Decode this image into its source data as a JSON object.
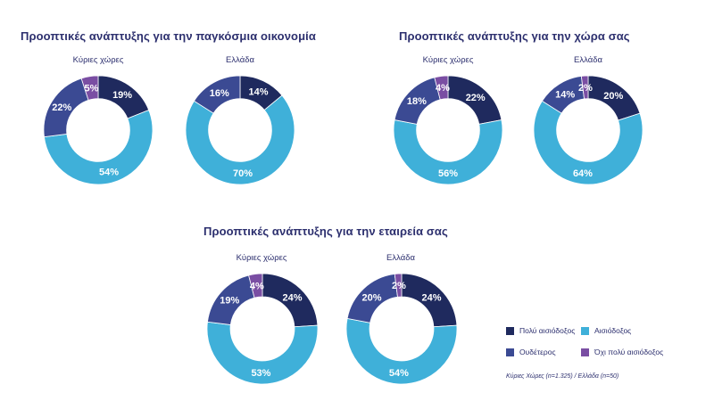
{
  "colors": {
    "very_optimistic": "#1f2a5e",
    "optimistic": "#3fb0d9",
    "neutral": "#3b4a93",
    "not_very_optimistic": "#7a4ea3",
    "text_dark": "#2c2f6e"
  },
  "groups": [
    {
      "title": "Προοπτικές ανάπτυξης για την παγκόσμια οικονομία"
    },
    {
      "title": "Προοπτικές ανάπτυξης για την χώρα σας"
    },
    {
      "title": "Προοπτικές ανάπτυξης για την εταιρεία σας"
    }
  ],
  "legend": {
    "items": [
      {
        "label": "Πολύ αισιόδοξος",
        "color_key": "very_optimistic"
      },
      {
        "label": "Αισιόδοξος",
        "color_key": "optimistic"
      },
      {
        "label": "Ουδέτερος",
        "color_key": "neutral"
      },
      {
        "label": "Όχι πολύ αισιόδοξος",
        "color_key": "not_very_optimistic"
      }
    ],
    "footnote": "Κύριες Χώρες (n=1.325) / Ελλάδα (n=50)"
  },
  "chart_data": [
    {
      "type": "pie",
      "group": "Προοπτικές ανάπτυξης για την παγκόσμια οικονομία",
      "title": "Κύριες χώρες",
      "categories": [
        "Πολύ αισιόδοξος",
        "Αισιόδοξος",
        "Ουδέτερος",
        "Όχι πολύ αισιόδοξος"
      ],
      "values": [
        19,
        54,
        22,
        5
      ],
      "labels": [
        "19%",
        "54%",
        "22%",
        "5%"
      ]
    },
    {
      "type": "pie",
      "group": "Προοπτικές ανάπτυξης για την παγκόσμια οικονομία",
      "title": "Ελλάδα",
      "categories": [
        "Πολύ αισιόδοξος",
        "Αισιόδοξος",
        "Ουδέτερος",
        "Όχι πολύ αισιόδοξος"
      ],
      "values": [
        14,
        70,
        16,
        0
      ],
      "labels": [
        "14%",
        "70%",
        "16%",
        ""
      ]
    },
    {
      "type": "pie",
      "group": "Προοπτικές ανάπτυξης για την χώρα σας",
      "title": "Κύριες χώρες",
      "categories": [
        "Πολύ αισιόδοξος",
        "Αισιόδοξος",
        "Ουδέτερος",
        "Όχι πολύ αισιόδοξος"
      ],
      "values": [
        22,
        56,
        18,
        4
      ],
      "labels": [
        "22%",
        "56%",
        "18%",
        "4%"
      ]
    },
    {
      "type": "pie",
      "group": "Προοπτικές ανάπτυξης για την χώρα σας",
      "title": "Ελλάδα",
      "categories": [
        "Πολύ αισιόδοξος",
        "Αισιόδοξος",
        "Ουδέτερος",
        "Όχι πολύ αισιόδοξος"
      ],
      "values": [
        20,
        64,
        14,
        2
      ],
      "labels": [
        "20%",
        "64%",
        "14%",
        "2%"
      ]
    },
    {
      "type": "pie",
      "group": "Προοπτικές ανάπτυξης για την εταιρεία σας",
      "title": "Κύριες χώρες",
      "categories": [
        "Πολύ αισιόδοξος",
        "Αισιόδοξος",
        "Ουδέτερος",
        "Όχι πολύ αισιόδοξος"
      ],
      "values": [
        24,
        53,
        19,
        4
      ],
      "labels": [
        "24%",
        "53%",
        "19%",
        "4%"
      ]
    },
    {
      "type": "pie",
      "group": "Προοπτικές ανάπτυξης για την εταιρεία σας",
      "title": "Ελλάδα",
      "categories": [
        "Πολύ αισιόδοξος",
        "Αισιόδοξος",
        "Ουδέτερος",
        "Όχι πολύ αισιόδοξος"
      ],
      "values": [
        24,
        54,
        20,
        2
      ],
      "labels": [
        "24%",
        "54%",
        "20%",
        "2%"
      ]
    }
  ]
}
